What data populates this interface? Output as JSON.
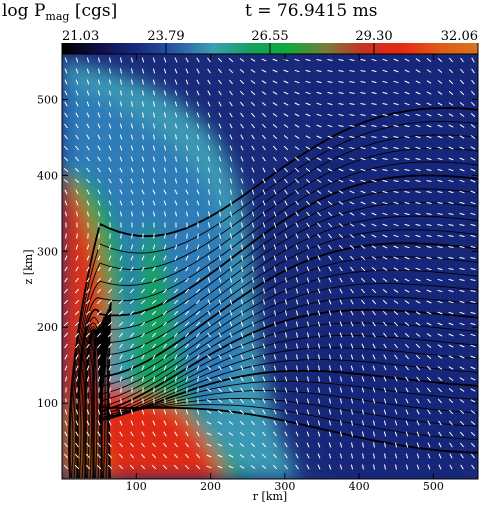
{
  "header": {
    "title_left_main": "log P",
    "title_left_sub": "mag",
    "title_left_unit": " [cgs]",
    "title_right": "t = 76.9415 ms"
  },
  "colorbar": {
    "tick_labels": [
      "21.03",
      "23.79",
      "26.55",
      "29.30",
      "32.06"
    ],
    "min": 21.03,
    "max": 32.06,
    "colors": [
      "#000000",
      "#10104a",
      "#1a2a80",
      "#2a5aa8",
      "#3aa0b0",
      "#12a060",
      "#10a83a",
      "#7a7a3a",
      "#c83020",
      "#e82a10",
      "#e05a18",
      "#d8741c"
    ]
  },
  "chart_data": {
    "type": "heatmap",
    "title": "t = 76.9415 ms",
    "colorbar_label": "log Pmag [cgs]",
    "xlabel": "r [km]",
    "ylabel": "z [km]",
    "xlim": [
      0,
      560
    ],
    "ylim": [
      0,
      560
    ],
    "x_ticks": [
      100,
      200,
      300,
      400,
      500
    ],
    "y_ticks": [
      100,
      200,
      300,
      400,
      500
    ],
    "x_tick_labels": [
      "100",
      "200",
      "300",
      "400",
      "500"
    ],
    "y_tick_labels": [
      "100",
      "200",
      "300",
      "400",
      "500"
    ],
    "overlays": [
      "magnetic field lines (black contours)",
      "velocity vectors (white arrows)"
    ]
  }
}
